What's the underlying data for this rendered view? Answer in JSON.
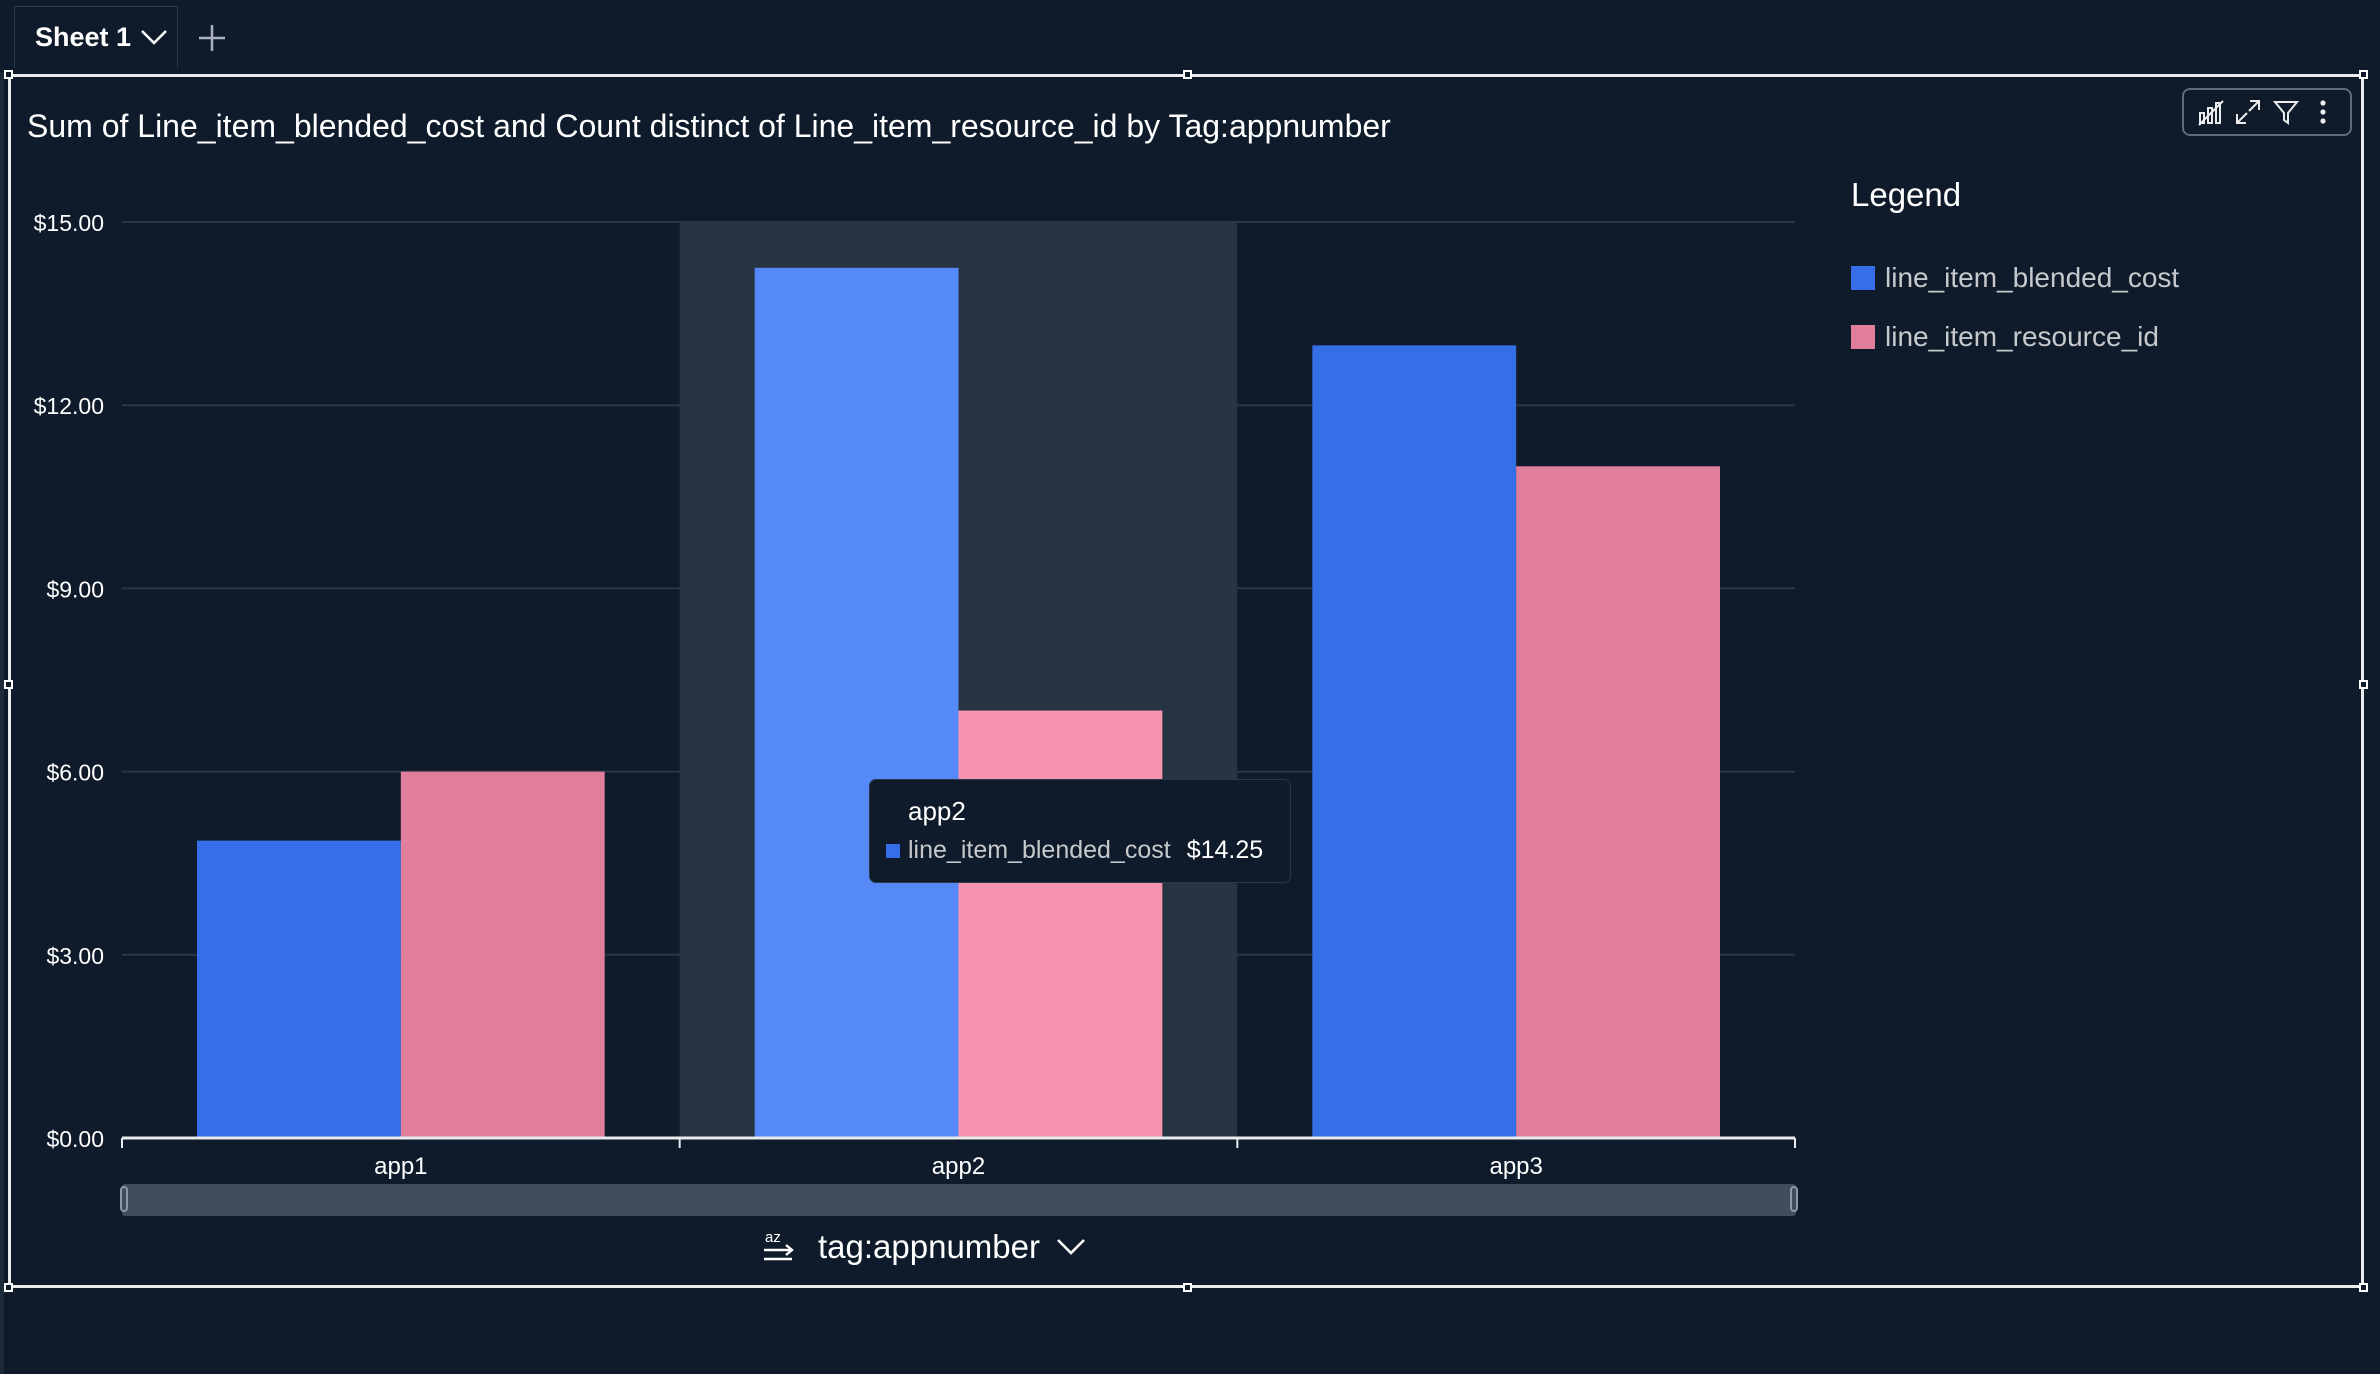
{
  "sheet": {
    "tab_label": "Sheet 1"
  },
  "visual": {
    "title": "Sum of Line_item_blended_cost and Count distinct of Line_item_resource_id by Tag:appnumber"
  },
  "toolbar": {
    "icons": [
      "chart-type-icon",
      "expand-icon",
      "filter-icon",
      "more-options-icon"
    ]
  },
  "legend": {
    "title": "Legend",
    "items": [
      {
        "label": "line_item_blended_cost",
        "color": "#356ee6"
      },
      {
        "label": "line_item_resource_id",
        "color": "#e17e9b"
      }
    ]
  },
  "xaxis_field": {
    "label": "tag:appnumber",
    "sort_icon": "sort-az-icon"
  },
  "tooltip": {
    "category": "app2",
    "series": "line_item_blended_cost",
    "value": "$14.25"
  },
  "chart_data": {
    "type": "bar",
    "title": "Sum of Line_item_blended_cost and Count distinct of Line_item_resource_id by Tag:appnumber",
    "xlabel": "tag:appnumber",
    "ylabel": "",
    "categories": [
      "app1",
      "app2",
      "app3"
    ],
    "series": [
      {
        "name": "line_item_blended_cost",
        "values": [
          4.87,
          14.25,
          12.98
        ],
        "color": "#356ee6",
        "highlight_color": "#5589f7"
      },
      {
        "name": "line_item_resource_id",
        "values": [
          6,
          7,
          11
        ],
        "color": "#e17e9b",
        "highlight_color": "#f593b0"
      }
    ],
    "ylim": [
      0,
      15
    ],
    "yticks": [
      0,
      3,
      6,
      9,
      12,
      15
    ],
    "ytick_labels": [
      "$0.00",
      "$3.00",
      "$6.00",
      "$9.00",
      "$12.00",
      "$15.00"
    ],
    "highlighted_category": "app2",
    "grid": true,
    "legend_position": "right"
  }
}
